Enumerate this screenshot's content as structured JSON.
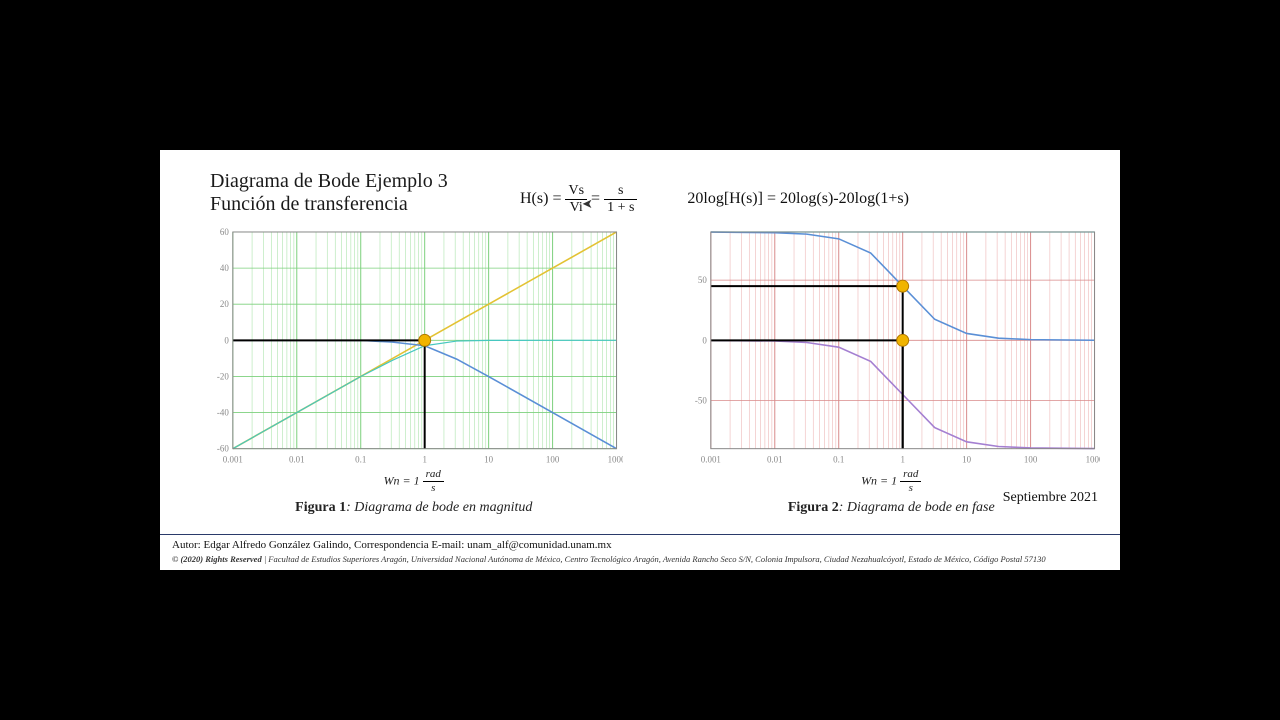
{
  "page_bg": "#000000",
  "slide_bg": "#ffffff",
  "title": {
    "line1": "Diagrama de Bode Ejemplo 3",
    "line2": "Función de transferencia",
    "fontsize": 20,
    "color": "#1a1a1a"
  },
  "equations": {
    "eq1_lhs": "H(s) =",
    "eq1_frac1_num": "Vs",
    "eq1_frac1_den": "Vi",
    "eq1_mid": "=",
    "eq1_frac2_num": "s",
    "eq1_frac2_den": "1 + s",
    "eq2": "20log[H(s)] = 20log(s)-20log(1+s)",
    "fontsize": 16,
    "color": "#111111"
  },
  "date": "Septiembre 2021",
  "wn_label_prefix": "Wn = 1",
  "wn_unit_num": "rad",
  "wn_unit_den": "s",
  "fig1": {
    "caption_bold": "Figura 1",
    "caption_rest": ": Diagrama de bode en magnitud",
    "type": "bode-magnitude-log",
    "grid_color_major": "#7cd07c",
    "grid_color_minor": "#b8e8b8",
    "background_color": "#ffffff",
    "border_color": "#888888",
    "x_log_min": -3,
    "x_log_max": 3,
    "xtick_labels": [
      "0.001",
      "0.01",
      "0.1",
      "1",
      "10",
      "100",
      "1000"
    ],
    "ylim": [
      -60,
      60
    ],
    "ytick_step": 20,
    "ytick_labels": [
      "-60",
      "-40",
      "-20",
      "0",
      "20",
      "40",
      "60"
    ],
    "series": [
      {
        "name": "20log(s)",
        "color": "#e3c233",
        "width": 1.6,
        "points": [
          [
            -3,
            -60
          ],
          [
            -2,
            -40
          ],
          [
            -1,
            -20
          ],
          [
            0,
            0
          ],
          [
            1,
            20
          ],
          [
            2,
            40
          ],
          [
            3,
            60
          ]
        ]
      },
      {
        "name": "-20log(1+s)",
        "color": "#5a8fd6",
        "width": 1.6,
        "points": [
          [
            -3,
            0
          ],
          [
            -2,
            0
          ],
          [
            -1,
            -0.04
          ],
          [
            -0.5,
            -1
          ],
          [
            0,
            -3.01
          ],
          [
            0.5,
            -10.4
          ],
          [
            1,
            -20.04
          ],
          [
            2,
            -40
          ],
          [
            3,
            -60
          ]
        ]
      },
      {
        "name": "sum",
        "color": "#46c7c0",
        "width": 1.2,
        "points": [
          [
            -3,
            -60
          ],
          [
            -2,
            -40
          ],
          [
            -1,
            -20.04
          ],
          [
            -0.5,
            -11
          ],
          [
            0,
            -3.01
          ],
          [
            0.5,
            -0.4
          ],
          [
            1,
            -0.04
          ],
          [
            2,
            0
          ],
          [
            3,
            0
          ]
        ]
      }
    ],
    "markers": [
      {
        "x_log": 0,
        "y": 0,
        "fill": "#f0b400",
        "stroke": "#b07800",
        "r": 6,
        "indicator_lines": true
      }
    ]
  },
  "fig2": {
    "caption_bold": "Figura 2",
    "caption_rest": ": Diagrama de bode en fase",
    "type": "bode-phase-log",
    "grid_color_major": "#d88a8a",
    "grid_color_minor": "#f0c2c2",
    "background_color": "#ffffff",
    "border_color": "#888888",
    "x_log_min": -3,
    "x_log_max": 3,
    "xtick_labels": [
      "0.001",
      "0.01",
      "0.1",
      "1",
      "10",
      "100",
      "1000"
    ],
    "ylim": [
      -90,
      90
    ],
    "ytick_positions": [
      -50,
      0,
      50
    ],
    "ytick_labels": [
      "-50",
      "0",
      "50"
    ],
    "series": [
      {
        "name": "phase_s",
        "color": "#46c7c0",
        "width": 1.2,
        "points": [
          [
            -3,
            90
          ],
          [
            3,
            90
          ]
        ]
      },
      {
        "name": "-phase(1+s)",
        "color": "#a47fd1",
        "width": 1.6,
        "points": [
          [
            -3,
            -0.06
          ],
          [
            -2,
            -0.57
          ],
          [
            -1.5,
            -1.8
          ],
          [
            -1,
            -5.7
          ],
          [
            -0.5,
            -17.5
          ],
          [
            0,
            -45
          ],
          [
            0.5,
            -72.5
          ],
          [
            1,
            -84.3
          ],
          [
            1.5,
            -88.2
          ],
          [
            2,
            -89.4
          ],
          [
            3,
            -89.9
          ]
        ]
      },
      {
        "name": "total",
        "color": "#5a8fd6",
        "width": 1.6,
        "points": [
          [
            -3,
            89.94
          ],
          [
            -2,
            89.43
          ],
          [
            -1.5,
            88.2
          ],
          [
            -1,
            84.3
          ],
          [
            -0.5,
            72.5
          ],
          [
            0,
            45
          ],
          [
            0.5,
            17.5
          ],
          [
            1,
            5.7
          ],
          [
            1.5,
            1.8
          ],
          [
            2,
            0.57
          ],
          [
            3,
            0.06
          ]
        ]
      }
    ],
    "markers": [
      {
        "x_log": 0,
        "y": 45,
        "fill": "#f0b400",
        "stroke": "#b07800",
        "r": 6,
        "indicator_lines": true
      },
      {
        "x_log": 0,
        "y": 0,
        "fill": "#f0b400",
        "stroke": "#b07800",
        "r": 6,
        "indicator_lines": true
      }
    ]
  },
  "footer": {
    "author": "Autor: Edgar Alfredo González Galindo, Correspondencia E-mail: unam_alf@comunidad.unam.mx",
    "rights_bold": "© (2020) Rights Reserved",
    "rights_rest": " | Facultad de Estudios Superiores Aragón, Universidad Nacional Autónoma de México, Centro Tecnológico Aragón, Avenida Rancho Seco S/N, Colonia Impulsora, Ciudad Nezahualcóyotl, Estado de México, Código Postal 57130",
    "border_color": "#2a3a6a"
  }
}
